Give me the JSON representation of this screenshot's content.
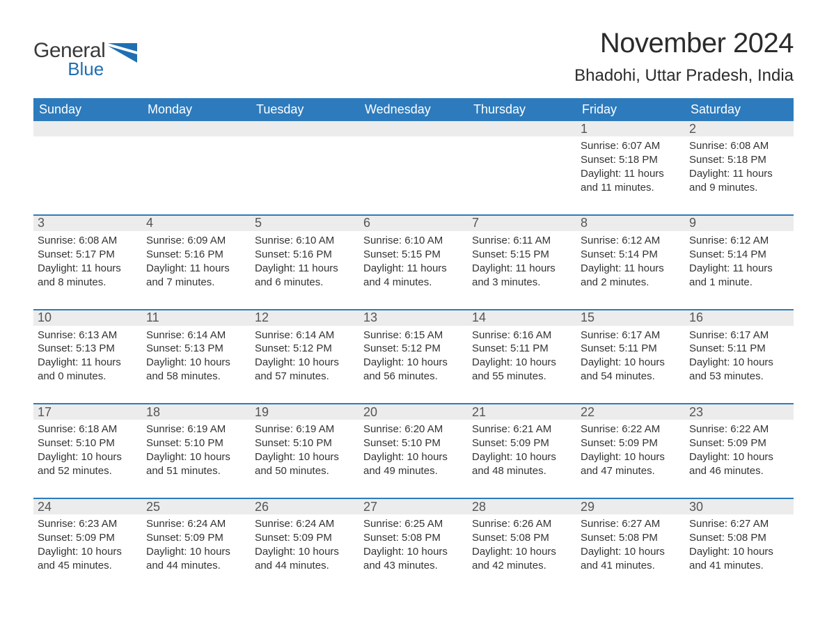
{
  "logo": {
    "general": "General",
    "blue": "Blue",
    "accent_color": "#1f6fb2"
  },
  "title": "November 2024",
  "location": "Bhadohi, Uttar Pradesh, India",
  "header_bg": "#2d7bbd",
  "header_text_color": "#ffffff",
  "daynum_bg": "#ececec",
  "border_color": "#2d7bbd",
  "text_color": "#333333",
  "days_of_week": [
    "Sunday",
    "Monday",
    "Tuesday",
    "Wednesday",
    "Thursday",
    "Friday",
    "Saturday"
  ],
  "weeks": [
    [
      {
        "empty": true
      },
      {
        "empty": true
      },
      {
        "empty": true
      },
      {
        "empty": true
      },
      {
        "empty": true
      },
      {
        "n": "1",
        "sunrise": "Sunrise: 6:07 AM",
        "sunset": "Sunset: 5:18 PM",
        "daylight": "Daylight: 11 hours and 11 minutes."
      },
      {
        "n": "2",
        "sunrise": "Sunrise: 6:08 AM",
        "sunset": "Sunset: 5:18 PM",
        "daylight": "Daylight: 11 hours and 9 minutes."
      }
    ],
    [
      {
        "n": "3",
        "sunrise": "Sunrise: 6:08 AM",
        "sunset": "Sunset: 5:17 PM",
        "daylight": "Daylight: 11 hours and 8 minutes."
      },
      {
        "n": "4",
        "sunrise": "Sunrise: 6:09 AM",
        "sunset": "Sunset: 5:16 PM",
        "daylight": "Daylight: 11 hours and 7 minutes."
      },
      {
        "n": "5",
        "sunrise": "Sunrise: 6:10 AM",
        "sunset": "Sunset: 5:16 PM",
        "daylight": "Daylight: 11 hours and 6 minutes."
      },
      {
        "n": "6",
        "sunrise": "Sunrise: 6:10 AM",
        "sunset": "Sunset: 5:15 PM",
        "daylight": "Daylight: 11 hours and 4 minutes."
      },
      {
        "n": "7",
        "sunrise": "Sunrise: 6:11 AM",
        "sunset": "Sunset: 5:15 PM",
        "daylight": "Daylight: 11 hours and 3 minutes."
      },
      {
        "n": "8",
        "sunrise": "Sunrise: 6:12 AM",
        "sunset": "Sunset: 5:14 PM",
        "daylight": "Daylight: 11 hours and 2 minutes."
      },
      {
        "n": "9",
        "sunrise": "Sunrise: 6:12 AM",
        "sunset": "Sunset: 5:14 PM",
        "daylight": "Daylight: 11 hours and 1 minute."
      }
    ],
    [
      {
        "n": "10",
        "sunrise": "Sunrise: 6:13 AM",
        "sunset": "Sunset: 5:13 PM",
        "daylight": "Daylight: 11 hours and 0 minutes."
      },
      {
        "n": "11",
        "sunrise": "Sunrise: 6:14 AM",
        "sunset": "Sunset: 5:13 PM",
        "daylight": "Daylight: 10 hours and 58 minutes."
      },
      {
        "n": "12",
        "sunrise": "Sunrise: 6:14 AM",
        "sunset": "Sunset: 5:12 PM",
        "daylight": "Daylight: 10 hours and 57 minutes."
      },
      {
        "n": "13",
        "sunrise": "Sunrise: 6:15 AM",
        "sunset": "Sunset: 5:12 PM",
        "daylight": "Daylight: 10 hours and 56 minutes."
      },
      {
        "n": "14",
        "sunrise": "Sunrise: 6:16 AM",
        "sunset": "Sunset: 5:11 PM",
        "daylight": "Daylight: 10 hours and 55 minutes."
      },
      {
        "n": "15",
        "sunrise": "Sunrise: 6:17 AM",
        "sunset": "Sunset: 5:11 PM",
        "daylight": "Daylight: 10 hours and 54 minutes."
      },
      {
        "n": "16",
        "sunrise": "Sunrise: 6:17 AM",
        "sunset": "Sunset: 5:11 PM",
        "daylight": "Daylight: 10 hours and 53 minutes."
      }
    ],
    [
      {
        "n": "17",
        "sunrise": "Sunrise: 6:18 AM",
        "sunset": "Sunset: 5:10 PM",
        "daylight": "Daylight: 10 hours and 52 minutes."
      },
      {
        "n": "18",
        "sunrise": "Sunrise: 6:19 AM",
        "sunset": "Sunset: 5:10 PM",
        "daylight": "Daylight: 10 hours and 51 minutes."
      },
      {
        "n": "19",
        "sunrise": "Sunrise: 6:19 AM",
        "sunset": "Sunset: 5:10 PM",
        "daylight": "Daylight: 10 hours and 50 minutes."
      },
      {
        "n": "20",
        "sunrise": "Sunrise: 6:20 AM",
        "sunset": "Sunset: 5:10 PM",
        "daylight": "Daylight: 10 hours and 49 minutes."
      },
      {
        "n": "21",
        "sunrise": "Sunrise: 6:21 AM",
        "sunset": "Sunset: 5:09 PM",
        "daylight": "Daylight: 10 hours and 48 minutes."
      },
      {
        "n": "22",
        "sunrise": "Sunrise: 6:22 AM",
        "sunset": "Sunset: 5:09 PM",
        "daylight": "Daylight: 10 hours and 47 minutes."
      },
      {
        "n": "23",
        "sunrise": "Sunrise: 6:22 AM",
        "sunset": "Sunset: 5:09 PM",
        "daylight": "Daylight: 10 hours and 46 minutes."
      }
    ],
    [
      {
        "n": "24",
        "sunrise": "Sunrise: 6:23 AM",
        "sunset": "Sunset: 5:09 PM",
        "daylight": "Daylight: 10 hours and 45 minutes."
      },
      {
        "n": "25",
        "sunrise": "Sunrise: 6:24 AM",
        "sunset": "Sunset: 5:09 PM",
        "daylight": "Daylight: 10 hours and 44 minutes."
      },
      {
        "n": "26",
        "sunrise": "Sunrise: 6:24 AM",
        "sunset": "Sunset: 5:09 PM",
        "daylight": "Daylight: 10 hours and 44 minutes."
      },
      {
        "n": "27",
        "sunrise": "Sunrise: 6:25 AM",
        "sunset": "Sunset: 5:08 PM",
        "daylight": "Daylight: 10 hours and 43 minutes."
      },
      {
        "n": "28",
        "sunrise": "Sunrise: 6:26 AM",
        "sunset": "Sunset: 5:08 PM",
        "daylight": "Daylight: 10 hours and 42 minutes."
      },
      {
        "n": "29",
        "sunrise": "Sunrise: 6:27 AM",
        "sunset": "Sunset: 5:08 PM",
        "daylight": "Daylight: 10 hours and 41 minutes."
      },
      {
        "n": "30",
        "sunrise": "Sunrise: 6:27 AM",
        "sunset": "Sunset: 5:08 PM",
        "daylight": "Daylight: 10 hours and 41 minutes."
      }
    ]
  ]
}
